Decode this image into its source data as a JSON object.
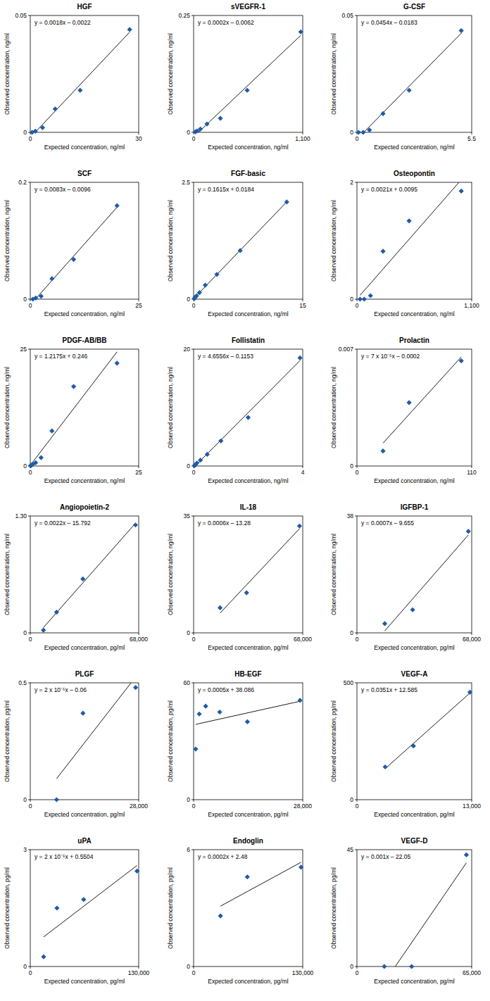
{
  "chart_data": [
    {
      "type": "scatter",
      "title": "HGF",
      "annotation": "y = 0.0018x – 0.0022",
      "x_label": "Expected concentration, ng/ml",
      "y_label": "Observed concentration, ng/ml",
      "x": [
        0.5,
        1.4,
        3.4,
        6.9,
        13.8,
        27.5
      ],
      "values": [
        0,
        0.0005,
        0.002,
        0.01,
        0.018,
        0.044
      ],
      "color": "#1f5ba6",
      "marker": "diamond",
      "xlim": [
        0,
        30
      ],
      "ylim": [
        0,
        0.05
      ],
      "xticks": [
        0,
        30
      ],
      "yticks": [
        0,
        0.05
      ]
    },
    {
      "type": "scatter",
      "title": "sVEGFR-1",
      "annotation": "y = 0.0002x – 0.0062",
      "x_label": "Expected concentration, ng/ml",
      "y_label": "Observed concentration, ng/ml",
      "x": [
        17,
        34,
        68,
        135,
        270,
        540,
        1080
      ],
      "values": [
        0.001,
        0.003,
        0.007,
        0.018,
        0.03,
        0.09,
        0.215
      ],
      "color": "#1f5ba6",
      "marker": "diamond",
      "xlim": [
        0,
        1100
      ],
      "ylim": [
        0,
        0.25
      ],
      "xticks": [
        0,
        {
          "value": 1100,
          "label": "1,100"
        }
      ],
      "yticks": [
        0,
        0.25
      ]
    },
    {
      "type": "scatter",
      "title": "G-CSF",
      "annotation": "y = 0.0454x – 0.0183",
      "x_label": "Expected concentration, ng/ml",
      "y_label": "Observed concentration, ng/ml",
      "x": [
        0.08,
        0.3,
        0.6,
        1.25,
        2.5,
        5.0
      ],
      "values": [
        0,
        0,
        0.001,
        0.008,
        0.018,
        0.0435
      ],
      "color": "#1f5ba6",
      "marker": "diamond",
      "xlim": [
        0,
        5.5
      ],
      "ylim": [
        0,
        0.05
      ],
      "xticks": [
        0,
        5.5
      ],
      "yticks": [
        0,
        0.05
      ]
    },
    {
      "type": "scatter",
      "title": "SCF",
      "annotation": "y = 0.0083x – 0.0096",
      "x_label": "Expected concentration, ng/ml",
      "y_label": "Observed concentration, ng/ml",
      "x": [
        0.6,
        1.25,
        2.5,
        5,
        10,
        20
      ],
      "values": [
        0,
        0.002,
        0.005,
        0.035,
        0.068,
        0.16
      ],
      "color": "#1f5ba6",
      "marker": "diamond",
      "xlim": [
        0,
        25
      ],
      "ylim": [
        0,
        0.2
      ],
      "xticks": [
        0,
        25
      ],
      "yticks": [
        0,
        0.2
      ]
    },
    {
      "type": "scatter",
      "title": "FGF-basic",
      "annotation": "y = 0.1615x + 0.0184",
      "x_label": "Expected concentration, ng/ml",
      "y_label": "Observed concentration, ng/ml",
      "x": [
        0.1,
        0.2,
        0.4,
        0.8,
        1.6,
        3.2,
        6.4,
        12.8
      ],
      "values": [
        0.01,
        0.04,
        0.07,
        0.14,
        0.3,
        0.53,
        1.04,
        2.08
      ],
      "color": "#1f5ba6",
      "marker": "diamond",
      "xlim": [
        0,
        15
      ],
      "ylim": [
        0,
        2.5
      ],
      "xticks": [
        0,
        15
      ],
      "yticks": [
        0,
        2.5
      ]
    },
    {
      "type": "scatter",
      "title": "Osteopontin",
      "annotation": "y = 0.0021x + 0.0095",
      "x_label": "Expected concentration, ng/ml",
      "y_label": "Observed concentration, ng/ml",
      "x": [
        30,
        70,
        130,
        250,
        500,
        1000
      ],
      "values": [
        0,
        0,
        0.06,
        0.82,
        1.34,
        1.85
      ],
      "color": "#1f5ba6",
      "marker": "diamond",
      "xlim": [
        0,
        1100
      ],
      "ylim": [
        0,
        2
      ],
      "xticks": [
        0,
        {
          "value": 1100,
          "label": "1,100"
        }
      ],
      "yticks": [
        0,
        2
      ]
    },
    {
      "type": "scatter",
      "title": "PDGF-AB/BB",
      "annotation": "y = 1.2175x + 0.246",
      "x_label": "Expected concentration, ng/ml",
      "y_label": "Observed concentration, ng/ml",
      "x": [
        0.05,
        0.15,
        0.3,
        0.6,
        1.25,
        2.5,
        5,
        10,
        20
      ],
      "values": [
        0.05,
        0.1,
        0.2,
        0.4,
        0.7,
        1.8,
        7.5,
        17,
        22
      ],
      "color": "#1f5ba6",
      "marker": "diamond",
      "xlim": [
        0,
        25
      ],
      "ylim": [
        0,
        25
      ],
      "xticks": [
        0,
        25
      ],
      "yticks": [
        0,
        25
      ]
    },
    {
      "type": "scatter",
      "title": "Follistatin",
      "annotation": "y = 4.6556x – 0.1153",
      "x_label": "Expected concentration, ng/ml",
      "y_label": "Observed concentration, ng/ml",
      "x": [
        0.03,
        0.06,
        0.12,
        0.25,
        0.5,
        1,
        2,
        3.9
      ],
      "values": [
        0.05,
        0.2,
        0.5,
        1,
        2,
        4.3,
        8.3,
        18.5
      ],
      "color": "#1f5ba6",
      "marker": "diamond",
      "xlim": [
        0,
        4
      ],
      "ylim": [
        0,
        20
      ],
      "xticks": [
        0,
        4
      ],
      "yticks": [
        0,
        20
      ]
    },
    {
      "type": "scatter",
      "title": "Prolactin",
      "annotation": "y = 7 x 10⁻⁵x – 0.0002",
      "x_label": "Expected concentration, ng/ml",
      "y_label": "Observed concentration, ng/ml",
      "x": [
        25,
        50,
        100
      ],
      "values": [
        0.0009,
        0.0038,
        0.0063
      ],
      "color": "#1f5ba6",
      "marker": "diamond",
      "xlim": [
        0,
        110
      ],
      "ylim": [
        0,
        0.007
      ],
      "xticks": [
        0,
        110
      ],
      "yticks": [
        0,
        0.007
      ]
    },
    {
      "type": "scatter",
      "title": "Angiopoietin-2",
      "annotation": "y = 0.0022x – 15.792",
      "x_label": "Expected concentration, pg/ml",
      "y_label": "Observed concentration, ng/ml",
      "x": [
        8250,
        16500,
        33000,
        66000
      ],
      "values": [
        0.03,
        0.23,
        0.6,
        1.2
      ],
      "color": "#1f5ba6",
      "marker": "diamond",
      "xlim": [
        0,
        68000
      ],
      "ylim": [
        0,
        1.3
      ],
      "xticks": [
        0,
        {
          "value": 68000,
          "label": "68,000"
        }
      ],
      "yticks": [
        0,
        {
          "value": 1.3,
          "label": "1.30"
        }
      ]
    },
    {
      "type": "scatter",
      "title": "IL-18",
      "annotation": "y = 0.0006x – 13.28",
      "x_label": "Expected concentration, pg/ml",
      "y_label": "Observed concentration, ng/ml",
      "x": [
        16500,
        33000,
        66000
      ],
      "values": [
        7.5,
        12,
        32
      ],
      "color": "#1f5ba6",
      "marker": "diamond",
      "xlim": [
        0,
        68000
      ],
      "ylim": [
        0,
        35
      ],
      "xticks": [
        0,
        {
          "value": 68000,
          "label": "68,000"
        }
      ],
      "yticks": [
        0,
        35
      ]
    },
    {
      "type": "scatter",
      "title": "IGFBP-1",
      "annotation": "y = 0.0007x – 9.655",
      "x_label": "Expected concentration, pg/ml",
      "y_label": "Observed concentration, ng/ml",
      "x": [
        16500,
        33000,
        66000
      ],
      "values": [
        3,
        7.5,
        33
      ],
      "color": "#1f5ba6",
      "marker": "diamond",
      "xlim": [
        0,
        68000
      ],
      "ylim": [
        0,
        38
      ],
      "xticks": [
        0,
        {
          "value": 68000,
          "label": "68,000"
        }
      ],
      "yticks": [
        0,
        38
      ]
    },
    {
      "type": "scatter",
      "title": "PLGF",
      "annotation": "y = 2 x 10⁻⁵x – 0.06",
      "x_label": "Expected concentration, pg/ml",
      "y_label": "Observed concentration, pg/ml",
      "x": [
        6800,
        13600,
        27200
      ],
      "values": [
        0,
        0.37,
        0.48
      ],
      "color": "#1f5ba6",
      "marker": "diamond",
      "xlim": [
        0,
        28000
      ],
      "ylim": [
        0,
        0.5
      ],
      "xticks": [
        0,
        {
          "value": 28000,
          "label": "28,000"
        }
      ],
      "yticks": [
        0,
        0.5
      ]
    },
    {
      "type": "scatter",
      "title": "HB-EGF",
      "annotation": "y = 0.0005x + 38.086",
      "x_label": "Expected concentration, pg/ml",
      "y_label": "Observed concentration, pg/ml",
      "x": [
        540,
        1450,
        3100,
        6700,
        13800,
        27300
      ],
      "values": [
        26,
        44,
        48,
        45,
        40,
        51
      ],
      "color": "#1f5ba6",
      "marker": "diamond",
      "xlim": [
        0,
        28000
      ],
      "ylim": [
        0,
        60
      ],
      "xticks": [
        0,
        {
          "value": 28000,
          "label": "28,000"
        }
      ],
      "yticks": [
        0,
        60
      ]
    },
    {
      "type": "scatter",
      "title": "VEGF-A",
      "annotation": "y = 0.0351x + 12.585",
      "x_label": "Expected concentration, pg/ml",
      "y_label": "Observed concentration, pg/ml",
      "x": [
        3200,
        6400,
        12800
      ],
      "values": [
        140,
        230,
        460
      ],
      "color": "#1f5ba6",
      "marker": "diamond",
      "xlim": [
        0,
        13000
      ],
      "ylim": [
        0,
        500
      ],
      "xticks": [
        0,
        {
          "value": 13000,
          "label": "13,000"
        }
      ],
      "yticks": [
        0,
        500
      ]
    },
    {
      "type": "scatter",
      "title": "uPA",
      "annotation": "y = 2 x 10⁻⁵x + 0.5504",
      "x_label": "Expected concentration, pg/ml",
      "y_label": "Observed concentration, pg/ml",
      "x": [
        16000,
        32000,
        64000,
        128000
      ],
      "values": [
        0.25,
        1.5,
        1.72,
        2.45
      ],
      "color": "#1f5ba6",
      "marker": "diamond",
      "xlim": [
        0,
        130000
      ],
      "ylim": [
        0,
        3
      ],
      "xticks": [
        0,
        {
          "value": 130000,
          "label": "130,000"
        }
      ],
      "yticks": [
        0,
        3
      ]
    },
    {
      "type": "scatter",
      "title": "Endoglin",
      "annotation": "y = 0.0002x + 2.48",
      "x_label": "Expected concentration, pg/ml",
      "y_label": "Observed concentration, pg/ml",
      "x": [
        32000,
        64000,
        128000
      ],
      "values": [
        2.6,
        4.6,
        5.1
      ],
      "color": "#1f5ba6",
      "marker": "diamond",
      "xlim": [
        0,
        130000
      ],
      "ylim": [
        0,
        6
      ],
      "xticks": [
        0,
        {
          "value": 130000,
          "label": "130,000"
        }
      ],
      "yticks": [
        0,
        6
      ]
    },
    {
      "type": "scatter",
      "title": "VEGF-D",
      "annotation": "y = 0.001x – 22.05",
      "x_label": "Expected concentration, pg/ml",
      "y_label": "Observed concentration, pg/ml",
      "x": [
        15500,
        31000,
        62000
      ],
      "values": [
        0,
        0,
        43
      ],
      "color": "#1f5ba6",
      "marker": "diamond",
      "xlim": [
        0,
        65000
      ],
      "ylim": [
        0,
        45
      ],
      "xticks": [
        0,
        {
          "value": 65000,
          "label": "65,000"
        }
      ],
      "yticks": [
        0,
        45
      ]
    }
  ]
}
